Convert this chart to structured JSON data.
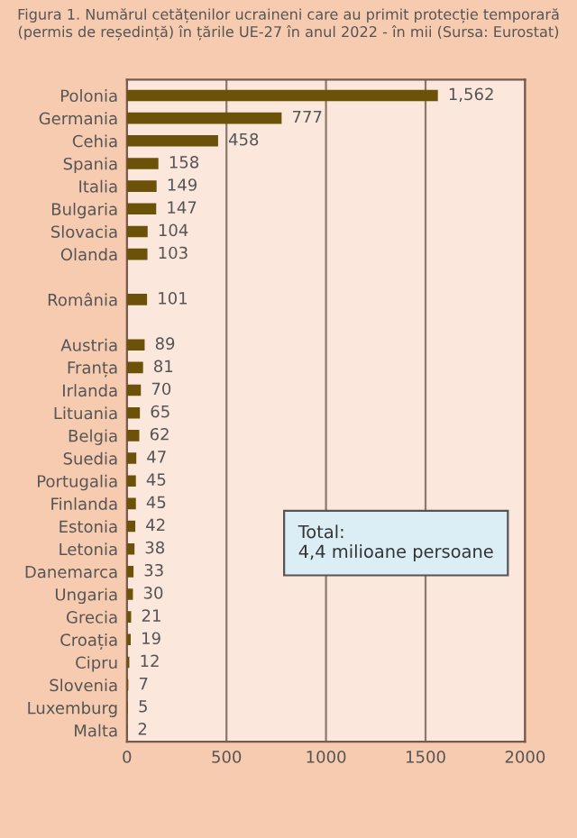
{
  "chart_data": {
    "type": "bar",
    "orientation": "horizontal",
    "title": "Figura 1. Numărul cetățenilor ucraineni care au primit protecție temporară (permis de reședință) în țările UE-27 în anul 2022 - în mii (Sursa: Eurostat)",
    "categories": [
      "Polonia",
      "Germania",
      "Cehia",
      "Spania",
      "Italia",
      "Bulgaria",
      "Slovacia",
      "Olanda",
      null,
      "România",
      null,
      "Austria",
      "Franța",
      "Irlanda",
      "Lituania",
      "Belgia",
      "Suedia",
      "Portugalia",
      "Finlanda",
      "Estonia",
      "Letonia",
      "Danemarca",
      "Ungaria",
      "Grecia",
      "Croația",
      "Cipru",
      "Slovenia",
      "Luxemburg",
      "Malta"
    ],
    "values": [
      1562,
      777,
      458,
      158,
      149,
      147,
      104,
      103,
      null,
      101,
      null,
      89,
      81,
      70,
      65,
      62,
      47,
      45,
      45,
      42,
      38,
      33,
      30,
      21,
      19,
      12,
      7,
      5,
      2
    ],
    "value_labels": [
      "1,562",
      "777",
      "458",
      "158",
      "149",
      "147",
      "104",
      "103",
      null,
      "101",
      null,
      "89",
      "81",
      "70",
      "65",
      "62",
      "47",
      "45",
      "45",
      "42",
      "38",
      "33",
      "30",
      "21",
      "19",
      "12",
      "7",
      "5",
      "2"
    ],
    "color": "#6b5208",
    "xlim": [
      0,
      2000
    ],
    "xticks": [
      0,
      500,
      1000,
      1500,
      2000
    ],
    "grid": "x",
    "annotations": [
      "Total:\n4,4 milioane persoane"
    ]
  }
}
